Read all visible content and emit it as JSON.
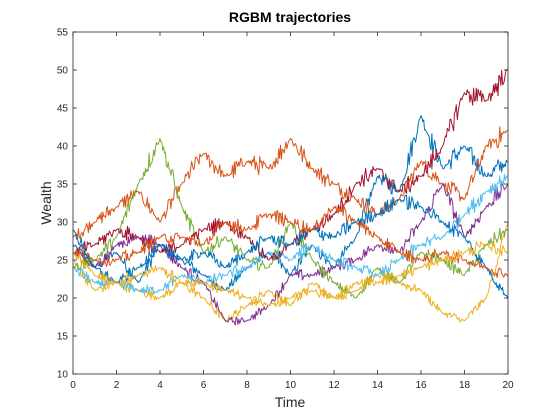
{
  "chart_data": {
    "type": "line",
    "title": "RGBM trajectories",
    "xlabel": "Time",
    "ylabel": "Wealth",
    "xlim": [
      0,
      20
    ],
    "ylim": [
      10,
      55
    ],
    "xticks": [
      0,
      2,
      4,
      6,
      8,
      10,
      12,
      14,
      16,
      18,
      20
    ],
    "yticks": [
      10,
      15,
      20,
      25,
      30,
      35,
      40,
      45,
      50,
      55
    ],
    "grid": false,
    "legend": "none",
    "x": [
      0,
      1,
      2,
      3,
      4,
      5,
      6,
      7,
      8,
      9,
      10,
      11,
      12,
      13,
      14,
      15,
      16,
      17,
      18,
      19,
      20
    ],
    "series": [
      {
        "color": "#0072BD",
        "values": [
          27,
          24,
          26,
          22,
          27,
          25,
          23,
          21,
          24,
          26,
          23,
          27,
          24,
          28,
          36,
          34,
          44,
          37,
          40,
          36,
          38
        ]
      },
      {
        "color": "#D95319",
        "values": [
          28,
          30,
          32,
          34,
          30,
          35,
          39,
          36,
          38,
          37,
          41,
          37,
          35,
          33,
          31,
          33,
          38,
          35,
          33,
          40,
          42
        ]
      },
      {
        "color": "#EDB120",
        "values": [
          25,
          21,
          22,
          21,
          20,
          22,
          20,
          17,
          19,
          21,
          19,
          22,
          20,
          21,
          23,
          22,
          21,
          18,
          17,
          20,
          30
        ]
      },
      {
        "color": "#7E2F8E",
        "values": [
          26,
          24,
          27,
          28,
          27,
          24,
          22,
          17,
          17,
          19,
          23,
          23,
          24,
          25,
          27,
          26,
          30,
          35,
          28,
          32,
          35
        ]
      },
      {
        "color": "#77AC30",
        "values": [
          24,
          25,
          28,
          35,
          41,
          32,
          26,
          28,
          25,
          24,
          30,
          25,
          22,
          20,
          24,
          22,
          26,
          25,
          23,
          27,
          29
        ]
      },
      {
        "color": "#4DBEEE",
        "values": [
          24,
          22,
          22,
          21,
          21,
          23,
          22,
          23,
          24,
          26,
          25,
          27,
          25,
          24,
          23,
          25,
          27,
          28,
          31,
          34,
          36
        ]
      },
      {
        "color": "#A2142F",
        "values": [
          26,
          27,
          29,
          28,
          26,
          27,
          29,
          30,
          28,
          25,
          27,
          29,
          31,
          35,
          37,
          34,
          36,
          40,
          47,
          46,
          50
        ]
      },
      {
        "color": "#0072BD",
        "values": [
          29,
          24,
          22,
          24,
          27,
          25,
          26,
          24,
          26,
          28,
          27,
          29,
          28,
          30,
          31,
          33,
          32,
          30,
          28,
          24,
          20
        ]
      },
      {
        "color": "#D95319",
        "values": [
          26,
          25,
          25,
          26,
          28,
          28,
          27,
          30,
          29,
          31,
          30,
          29,
          32,
          30,
          28,
          26,
          25,
          26,
          25,
          24,
          23
        ]
      },
      {
        "color": "#EDB120",
        "values": [
          26,
          23,
          22,
          23,
          24,
          22,
          22,
          21,
          20,
          19,
          20,
          21,
          20,
          22,
          22,
          23,
          24,
          25,
          26,
          27,
          26
        ]
      }
    ]
  }
}
